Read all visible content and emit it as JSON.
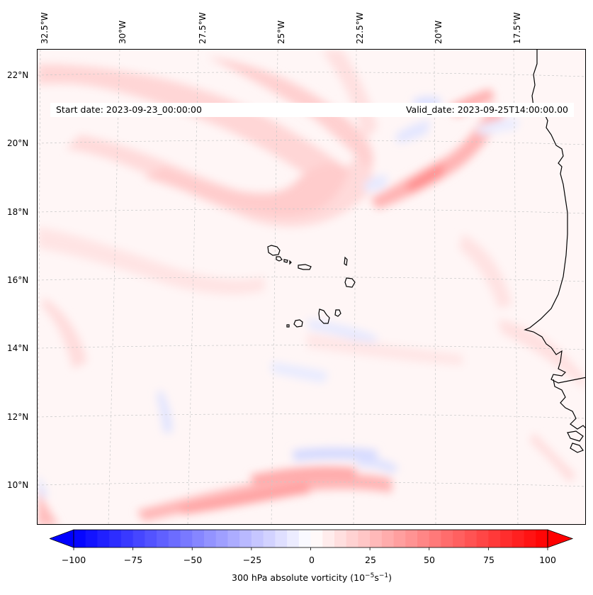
{
  "map": {
    "start_date": "Start date: 2023-09-23_00:00:00",
    "valid_date": "Valid_date: 2023-09-25T14:00:00.00",
    "longitude_labels": [
      "32.5°W",
      "30°W",
      "27.5°W",
      "25°W",
      "22.5°W",
      "20°W",
      "17.5°W"
    ],
    "latitude_labels": [
      "22°N",
      "20°N",
      "18°N",
      "16°N",
      "14°N",
      "12°N",
      "10°N"
    ],
    "field": "300 hPa absolute vorticity",
    "colors": {
      "coastline": "#000000",
      "gridlines": "#c8c8c8",
      "positive": "#ff0000",
      "negative": "#0000ff",
      "neutral": "#ffffff"
    }
  },
  "colorbar": {
    "label": "300 hPa absolute vorticity (10",
    "label_exp1": "−5",
    "label_mid": "s",
    "label_exp2": "−1",
    "label_end": ")",
    "ticks": [
      "−100",
      "−75",
      "−50",
      "−25",
      "0",
      "25",
      "50",
      "75",
      "100"
    ],
    "range": [
      -100,
      100
    ],
    "min_color": "#0000ff",
    "max_color": "#ff0000"
  }
}
